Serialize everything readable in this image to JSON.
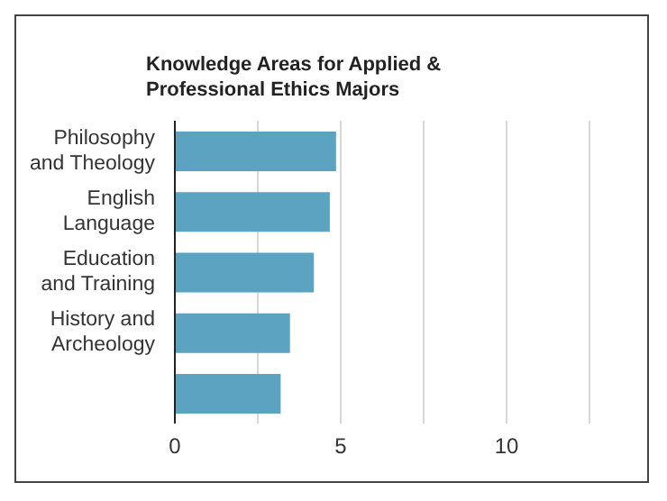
{
  "chart_data": {
    "type": "bar",
    "orientation": "horizontal",
    "title": "Knowledge Areas for Applied & Professional Ethics Majors",
    "categories": [
      "Philosophy and Theology",
      "English Language",
      "Education and Training",
      "History and Archeology",
      null
    ],
    "values": [
      4.86,
      4.67,
      4.19,
      3.47,
      3.19
    ],
    "color": "#5ba3c1",
    "xlim": [
      0,
      12.5
    ],
    "xticks": [
      0,
      {
        "value": 2.5,
        "label": null
      },
      5,
      {
        "value": 7.5,
        "label": null
      },
      10
    ],
    "grid": "x"
  }
}
